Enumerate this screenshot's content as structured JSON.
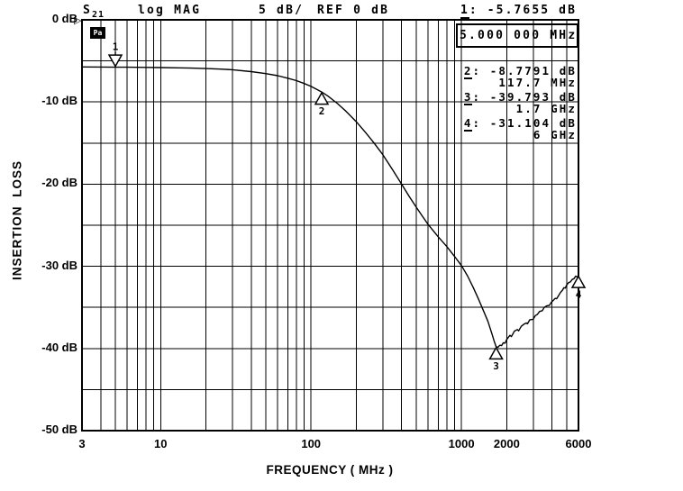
{
  "header": {
    "s_param_main": "S",
    "s_param_sub": "21",
    "format_label": "log MAG",
    "scale_label": "5 dB/",
    "ref_label": "REF 0 dB"
  },
  "status_badge": {
    "text": "Pa"
  },
  "ref_pointer": "▷",
  "axis_titles": {
    "y": "INSERTION LOSS",
    "x": "FREQUENCY ( MHz )"
  },
  "markers": {
    "m1": {
      "num": "1",
      "rest": ": -5.7655 dB",
      "freq_box": "5.000 000 MHz"
    },
    "list": [
      {
        "num": "2",
        "rest": ": -8.7791 dB",
        "freq": "117.7 MHz"
      },
      {
        "num": "3",
        "rest": ": -39.793 dB",
        "freq": "1.7 GHz"
      },
      {
        "num": "4",
        "rest": ": -31.104 dB",
        "freq": "6 GHz"
      }
    ]
  },
  "chart_data": {
    "type": "line",
    "title": "S21 log MAG 5 dB/ REF 0 dB",
    "xlabel": "FREQUENCY ( MHz )",
    "ylabel": "INSERTION LOSS",
    "x_scale": "log",
    "xlim": [
      3,
      6000
    ],
    "ylim": [
      -50,
      0
    ],
    "y_div_db": 5,
    "grid": true,
    "xticks": [
      "3",
      "10",
      "100",
      "1000",
      "2000",
      "6000"
    ],
    "xtick_values": [
      3,
      10,
      100,
      1000,
      2000,
      6000
    ],
    "ytick_labels": [
      "0 dB",
      "-10 dB",
      "-20 dB",
      "-30 dB",
      "-40 dB",
      "-50 dB"
    ],
    "ytick_values": [
      0,
      -10,
      -20,
      -30,
      -40,
      -50
    ],
    "grid_x_lines": [
      3,
      4,
      5,
      6,
      7,
      8,
      9,
      10,
      20,
      30,
      40,
      50,
      60,
      70,
      80,
      90,
      100,
      200,
      300,
      400,
      500,
      600,
      700,
      800,
      900,
      1000,
      2000,
      3000,
      4000,
      5000,
      6000
    ],
    "series": [
      {
        "name": "S21 insertion loss",
        "points": [
          [
            3,
            -5.74
          ],
          [
            4,
            -5.75
          ],
          [
            5,
            -5.7655
          ],
          [
            6,
            -5.77
          ],
          [
            8,
            -5.79
          ],
          [
            10,
            -5.81
          ],
          [
            13,
            -5.84
          ],
          [
            16,
            -5.88
          ],
          [
            20,
            -5.93
          ],
          [
            25,
            -6.0
          ],
          [
            30,
            -6.08
          ],
          [
            40,
            -6.3
          ],
          [
            50,
            -6.55
          ],
          [
            60,
            -6.8
          ],
          [
            70,
            -7.1
          ],
          [
            80,
            -7.4
          ],
          [
            90,
            -7.75
          ],
          [
            100,
            -8.1
          ],
          [
            110,
            -8.5
          ],
          [
            117.7,
            -8.7791
          ],
          [
            130,
            -9.3
          ],
          [
            150,
            -10.2
          ],
          [
            170,
            -11.1
          ],
          [
            200,
            -12.4
          ],
          [
            230,
            -13.7
          ],
          [
            260,
            -14.9
          ],
          [
            300,
            -16.4
          ],
          [
            350,
            -18.3
          ],
          [
            400,
            -20.0
          ],
          [
            450,
            -21.5
          ],
          [
            500,
            -22.8
          ],
          [
            550,
            -23.9
          ],
          [
            600,
            -24.9
          ],
          [
            700,
            -26.4
          ],
          [
            800,
            -27.6
          ],
          [
            900,
            -28.8
          ],
          [
            1000,
            -29.9
          ],
          [
            1100,
            -31.2
          ],
          [
            1200,
            -32.6
          ],
          [
            1300,
            -34.0
          ],
          [
            1400,
            -35.4
          ],
          [
            1500,
            -36.7
          ],
          [
            1600,
            -38.3
          ],
          [
            1650,
            -39.1
          ],
          [
            1700,
            -39.793
          ],
          [
            1750,
            -39.85
          ],
          [
            1800,
            -39.6
          ],
          [
            1850,
            -39.65
          ],
          [
            1900,
            -39.3
          ],
          [
            1950,
            -39.35
          ],
          [
            2000,
            -38.9
          ],
          [
            2100,
            -38.4
          ],
          [
            2150,
            -38.55
          ],
          [
            2250,
            -37.9
          ],
          [
            2350,
            -37.7
          ],
          [
            2400,
            -37.85
          ],
          [
            2500,
            -37.3
          ],
          [
            2600,
            -37.05
          ],
          [
            2700,
            -36.9
          ],
          [
            2750,
            -37.0
          ],
          [
            2850,
            -36.5
          ],
          [
            3000,
            -36.45
          ],
          [
            3100,
            -36.0
          ],
          [
            3200,
            -35.85
          ],
          [
            3300,
            -35.5
          ],
          [
            3450,
            -35.4
          ],
          [
            3550,
            -35.0
          ],
          [
            3700,
            -34.8
          ],
          [
            3850,
            -34.75
          ],
          [
            3950,
            -34.4
          ],
          [
            4100,
            -34.1
          ],
          [
            4200,
            -33.9
          ],
          [
            4300,
            -33.95
          ],
          [
            4450,
            -33.5
          ],
          [
            4550,
            -33.2
          ],
          [
            4700,
            -32.9
          ],
          [
            4800,
            -32.6
          ],
          [
            4900,
            -32.65
          ],
          [
            5000,
            -32.3
          ],
          [
            5150,
            -32.0
          ],
          [
            5300,
            -31.9
          ],
          [
            5450,
            -31.6
          ],
          [
            5600,
            -31.5
          ],
          [
            5750,
            -31.2
          ],
          [
            5900,
            -31.3
          ],
          [
            6000,
            -31.104
          ]
        ]
      }
    ],
    "point_markers": [
      {
        "n": "1",
        "f": 5,
        "db": -5.7655,
        "dir": "down"
      },
      {
        "n": "2",
        "f": 117.7,
        "db": -8.7791,
        "dir": "up"
      },
      {
        "n": "3",
        "f": 1700,
        "db": -39.793,
        "dir": "up"
      },
      {
        "n": "4",
        "f": 6000,
        "db": -31.104,
        "dir": "up"
      }
    ]
  }
}
